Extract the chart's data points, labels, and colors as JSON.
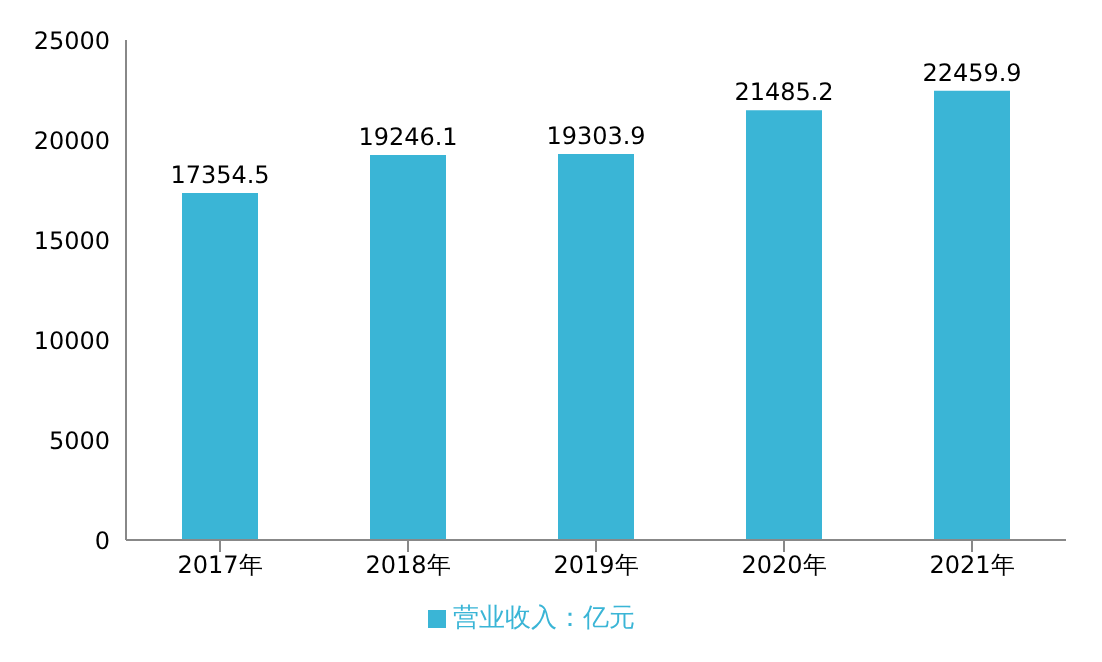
{
  "chart_data": {
    "type": "bar",
    "categories": [
      "2017年",
      "2018年",
      "2019年",
      "2020年",
      "2021年"
    ],
    "series": [
      {
        "name": "营业收入：亿元",
        "color": "#3ab5d6",
        "values": [
          17354.5,
          19246.1,
          19303.9,
          21485.2,
          22459.9
        ]
      }
    ],
    "ylim": [
      0,
      25000
    ],
    "yticks": [
      0,
      5000,
      10000,
      15000,
      20000,
      25000
    ],
    "grid": false,
    "legend": "bottom",
    "data_labels": true
  }
}
